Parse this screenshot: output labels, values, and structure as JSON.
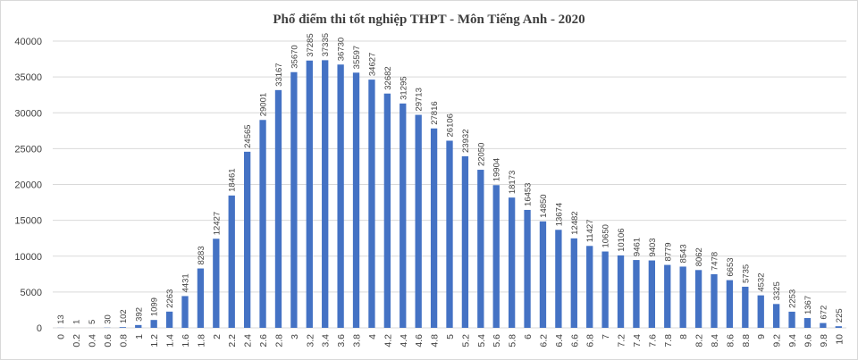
{
  "chart_data": {
    "type": "bar",
    "title": "Phổ điểm thi tốt nghiệp THPT - Môn Tiếng Anh - 2020",
    "xlabel": "",
    "ylabel": "",
    "ylim": [
      0,
      40000
    ],
    "yticks": [
      "0",
      "5000",
      "10000",
      "15000",
      "20000",
      "25000",
      "30000",
      "35000",
      "40000"
    ],
    "grid": true,
    "legend": "none",
    "bar_color": "#4472c4",
    "categories": [
      "0",
      "0.2",
      "0.4",
      "0.6",
      "0.8",
      "1",
      "1.2",
      "1.4",
      "1.6",
      "1.8",
      "2",
      "2.2",
      "2.4",
      "2.6",
      "2.8",
      "3",
      "3.2",
      "3.4",
      "3.6",
      "3.8",
      "4",
      "4.2",
      "4.4",
      "4.6",
      "4.8",
      "5",
      "5.2",
      "5.4",
      "5.6",
      "5.8",
      "6",
      "6.2",
      "6.4",
      "6.6",
      "6.8",
      "7",
      "7.2",
      "7.4",
      "7.6",
      "7.8",
      "8",
      "8.2",
      "8.4",
      "8.6",
      "8.8",
      "9",
      "9.2",
      "9.4",
      "9.6",
      "9.8",
      "10"
    ],
    "values": [
      13,
      1,
      5,
      30,
      102,
      392,
      1099,
      2263,
      4431,
      8283,
      12427,
      18461,
      24565,
      29001,
      33167,
      35670,
      37285,
      37335,
      36730,
      35597,
      34627,
      32682,
      31295,
      29713,
      27816,
      26106,
      23932,
      22050,
      19904,
      18173,
      16453,
      14850,
      13674,
      12482,
      11427,
      10650,
      10106,
      9461,
      9403,
      8779,
      8543,
      8062,
      7478,
      6653,
      5735,
      4532,
      3325,
      2253,
      1367,
      672,
      225
    ]
  }
}
